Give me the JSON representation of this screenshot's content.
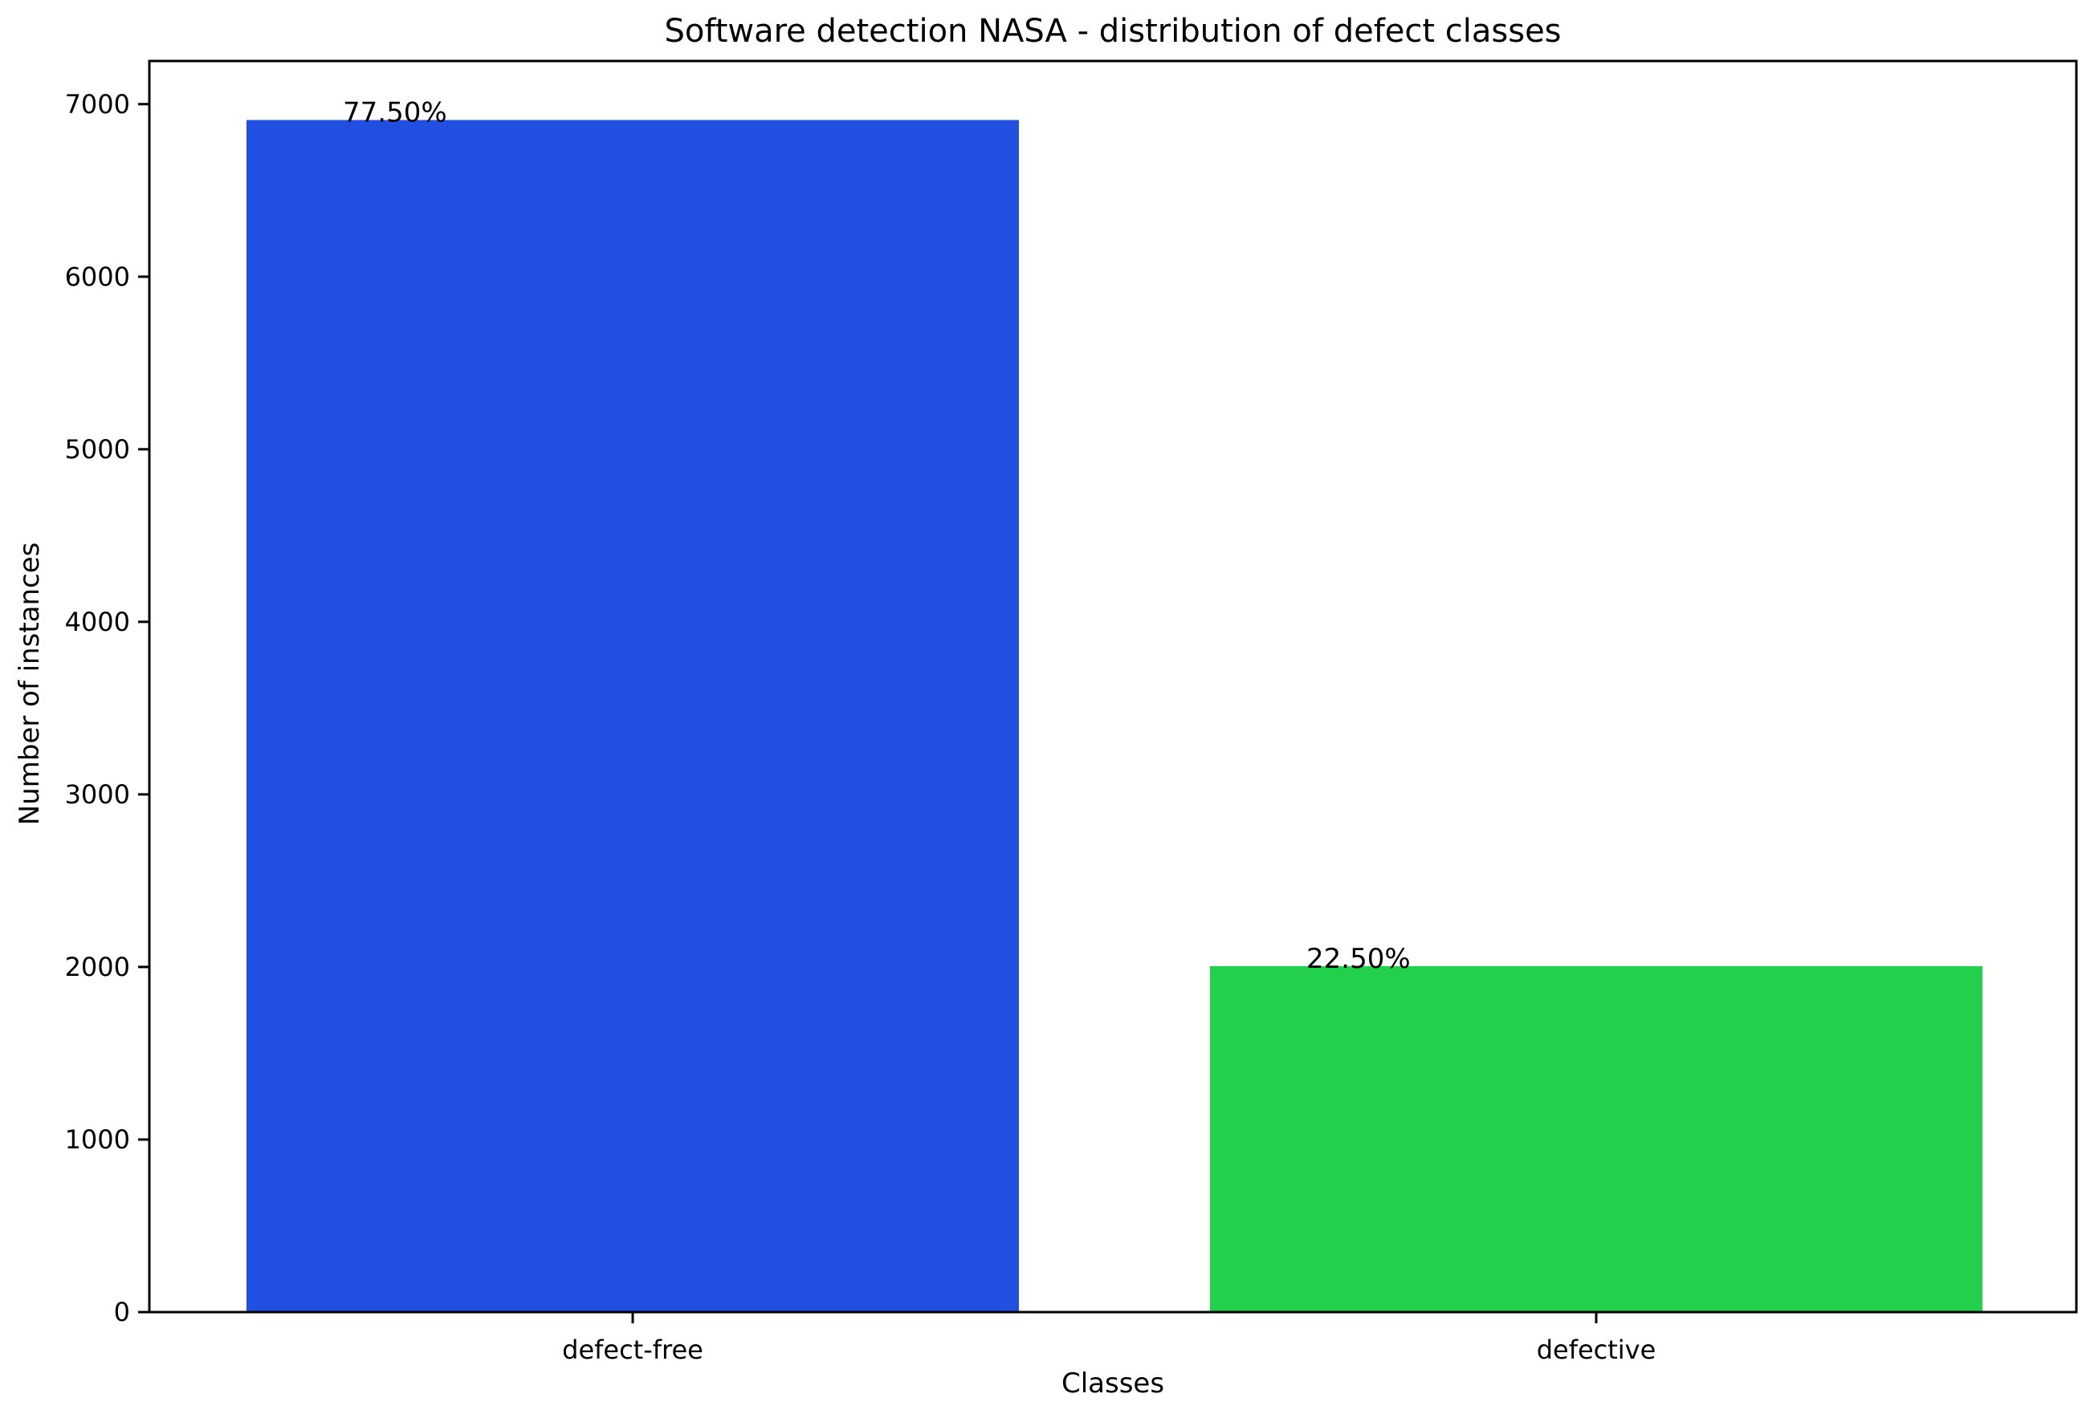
{
  "chart_data": {
    "type": "bar",
    "title": "Software detection NASA - distribution of defect classes",
    "xlabel": "Classes",
    "ylabel": "Number of instances",
    "categories": [
      "defect-free",
      "defective"
    ],
    "values": [
      6908,
      2005
    ],
    "data_labels": [
      "77.50%",
      "22.50%"
    ],
    "colors": [
      "#2150e0",
      "#22d04c"
    ],
    "ylim": [
      0,
      7250
    ],
    "yticks": [
      0,
      1000,
      2000,
      3000,
      4000,
      5000,
      6000,
      7000
    ],
    "ytick_labels": [
      "0",
      "1000",
      "2000",
      "3000",
      "4000",
      "5000",
      "6000",
      "7000"
    ],
    "grid": false,
    "legend": "none"
  }
}
